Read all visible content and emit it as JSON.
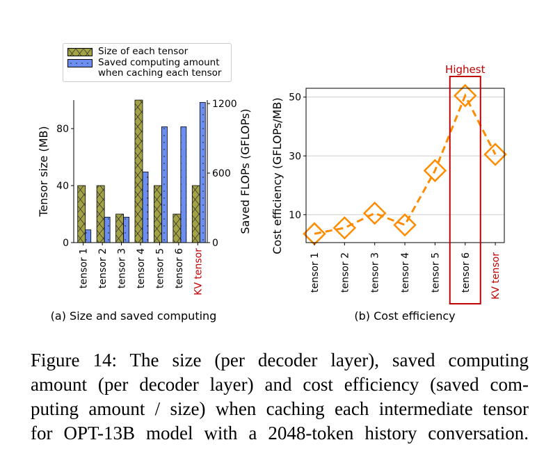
{
  "chart_data": [
    {
      "type": "bar",
      "title": "(a) Size and saved computing",
      "ylabel": "Tensor size (MB)",
      "y2label": "Saved FLOPs (GFLOPs)",
      "categories": [
        "tensor 1",
        "tensor 2",
        "tensor 3",
        "tensor 4",
        "tensor 5",
        "tensor 6",
        "KV tensor"
      ],
      "highlight_category": "KV tensor",
      "highlight_color": "#c00000",
      "series": [
        {
          "name": "Size of each tensor",
          "color": "#a3a346",
          "hatch": "cross",
          "values": [
            40,
            40,
            20,
            100,
            40,
            20,
            40
          ]
        },
        {
          "name": "Saved computing amount when caching each tensor",
          "color": "#6b8ef0",
          "hatch": "dots",
          "axis": "y2",
          "values": [
            110,
            220,
            220,
            610,
            1000,
            1000,
            1210
          ]
        }
      ],
      "ylim": [
        0,
        100
      ],
      "yticks": [
        0,
        40,
        80
      ],
      "y2lim": [
        0,
        1230
      ],
      "y2ticks": [
        0,
        600,
        1200
      ],
      "legend": "top"
    },
    {
      "type": "line",
      "title": "(b) Cost efficiency",
      "ylabel": "Cost efficiency (GFLOPs/MB)",
      "categories": [
        "tensor 1",
        "tensor 2",
        "tensor 3",
        "tensor 4",
        "tensor 5",
        "tensor 6",
        "KV tensor"
      ],
      "highlight_category": "KV tensor",
      "highlight_color": "#c00000",
      "values": [
        3.5,
        5.5,
        10.5,
        6.5,
        25,
        50.5,
        30.5
      ],
      "color": "#ff8c00",
      "marker": "diamond",
      "ylim": [
        0.5,
        53
      ],
      "yticks": [
        10,
        30,
        50
      ],
      "grid": true,
      "annotation": {
        "text": "Highest",
        "category": "tensor 6",
        "color": "#c00000"
      }
    }
  ],
  "caption": [
    "Figure 14: The size (per decoder layer), saved computing",
    "amount (per decoder layer) and cost efficiency (saved com-",
    "puting amount / size) when caching each intermediate tensor",
    "for OPT-13B model with a 2048-token history conversation."
  ]
}
